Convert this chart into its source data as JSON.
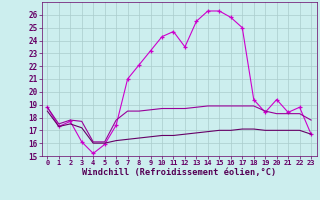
{
  "xlabel": "Windchill (Refroidissement éolien,°C)",
  "x": [
    0,
    1,
    2,
    3,
    4,
    5,
    6,
    7,
    8,
    9,
    10,
    11,
    12,
    13,
    14,
    15,
    16,
    17,
    18,
    19,
    20,
    21,
    22,
    23
  ],
  "line1": [
    18.8,
    17.3,
    17.7,
    16.1,
    15.2,
    15.9,
    17.4,
    21.0,
    22.1,
    23.2,
    24.3,
    24.7,
    23.5,
    25.5,
    26.3,
    26.3,
    25.8,
    25.0,
    19.4,
    18.4,
    19.4,
    18.4,
    18.8,
    16.7
  ],
  "line2": [
    18.8,
    17.5,
    17.8,
    17.7,
    16.1,
    16.1,
    17.8,
    18.5,
    18.5,
    18.6,
    18.7,
    18.7,
    18.7,
    18.8,
    18.9,
    18.9,
    18.9,
    18.9,
    18.9,
    18.5,
    18.3,
    18.3,
    18.3,
    17.8
  ],
  "line3": [
    18.5,
    17.3,
    17.5,
    17.2,
    16.0,
    16.0,
    16.2,
    16.3,
    16.4,
    16.5,
    16.6,
    16.6,
    16.7,
    16.8,
    16.9,
    17.0,
    17.0,
    17.1,
    17.1,
    17.0,
    17.0,
    17.0,
    17.0,
    16.7
  ],
  "line_color1": "#cc00cc",
  "line_color2": "#990099",
  "line_color3": "#660066",
  "bg_color": "#cceeee",
  "grid_color": "#aacccc",
  "tick_color": "#660066",
  "xlabel_color": "#550055",
  "ylim": [
    15,
    27
  ],
  "yticks": [
    15,
    16,
    17,
    18,
    19,
    20,
    21,
    22,
    23,
    24,
    25,
    26
  ],
  "marker": "+"
}
